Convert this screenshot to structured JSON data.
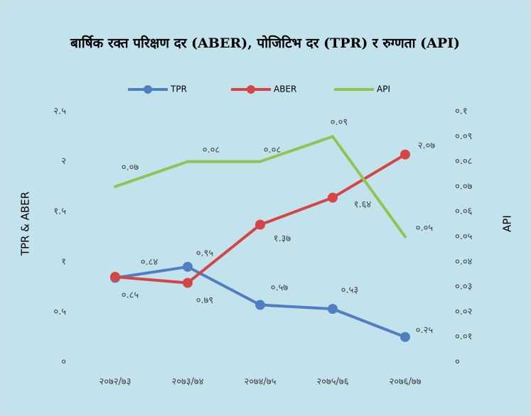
{
  "chart_data": {
    "type": "line",
    "title": "बार्षिक रक्त परिक्षण दर (ABER), पोजिटिभ दर (TPR) र रुग्णता (API)",
    "categories": [
      "२०७२/७३",
      "२०७३/७४",
      "२०७४/७५",
      "२०७५/७६",
      "२०७६/७७"
    ],
    "y_label": "TPR & ABER",
    "y2_label": "API",
    "series": [
      {
        "name": "TPR",
        "color": "#4f7fc2",
        "values": [
          0.84,
          0.95,
          0.57,
          0.53,
          0.25
        ],
        "value_labels": [
          "०.८४",
          "०.९५",
          "०.५७",
          "०.५३",
          "०.२५"
        ],
        "markers": true
      },
      {
        "name": "ABER",
        "color": "#d64545",
        "values": [
          0.85,
          0.79,
          1.37,
          1.64,
          2.07
        ],
        "value_labels": [
          "०.८५",
          "०.७९",
          "१.३७",
          "१.६४",
          "२.०७"
        ],
        "markers": true
      },
      {
        "name": "API",
        "color": "#92c353",
        "axis": "y2",
        "values": [
          0.07,
          0.08,
          0.08,
          0.09,
          0.05
        ],
        "value_labels": [
          "०.०७",
          "०.०८",
          "०.०८",
          "०.०९",
          "०.०५"
        ],
        "markers": false
      }
    ],
    "ylim": [
      0,
      2.5
    ],
    "yticks": [
      {
        "value": 0,
        "label": "०"
      },
      {
        "value": 0.5,
        "label": "०.५"
      },
      {
        "value": 1,
        "label": "१"
      },
      {
        "value": 1.5,
        "label": "१.५"
      },
      {
        "value": 2,
        "label": "२"
      },
      {
        "value": 2.5,
        "label": "२.५"
      }
    ],
    "y2lim": [
      0,
      0.1
    ],
    "y2ticks": [
      {
        "value": 0,
        "label": "०"
      },
      {
        "value": 0.01,
        "label": "०.०१"
      },
      {
        "value": 0.02,
        "label": "०.०२"
      },
      {
        "value": 0.03,
        "label": "०.०३"
      },
      {
        "value": 0.04,
        "label": "०.०४"
      },
      {
        "value": 0.05,
        "label": "०.०५"
      },
      {
        "value": 0.06,
        "label": "०.०६"
      },
      {
        "value": 0.07,
        "label": "०.०७"
      },
      {
        "value": 0.08,
        "label": "०.०८"
      },
      {
        "value": 0.09,
        "label": "०.०९"
      },
      {
        "value": 0.1,
        "label": "०.१"
      }
    ],
    "grid": false,
    "legend": "top"
  }
}
